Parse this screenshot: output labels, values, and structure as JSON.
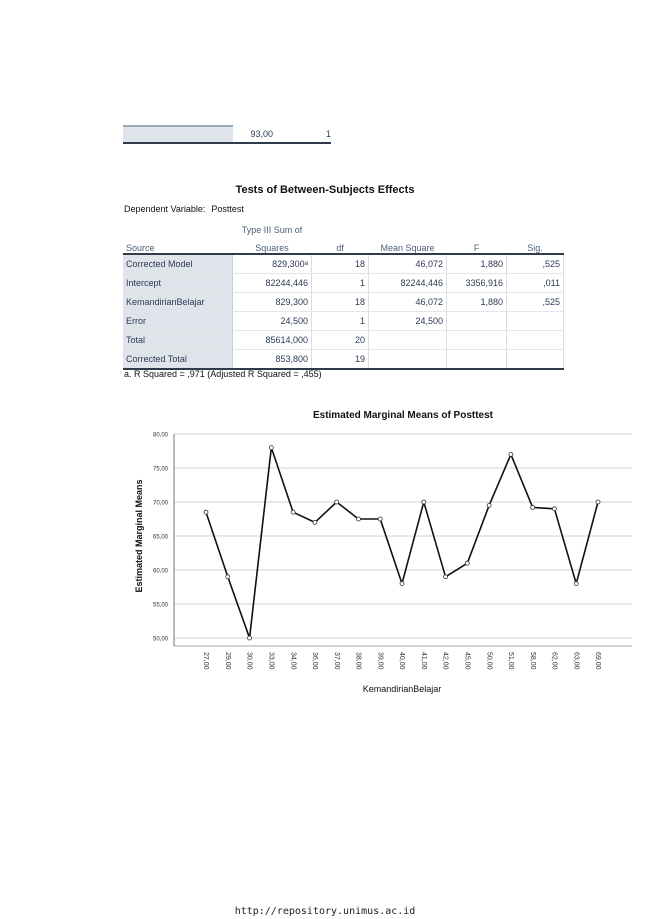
{
  "residual_table": {
    "value": "93,00",
    "count": "1"
  },
  "anova": {
    "title": "Tests of Between-Subjects Effects",
    "dep_var_label": "Dependent Variable:",
    "dep_var_value": "Posttest",
    "headers": {
      "source": "Source",
      "ss_top": "Type III Sum of",
      "ss_bottom": "Squares",
      "df": "df",
      "ms": "Mean Square",
      "f": "F",
      "sig": "Sig."
    },
    "rows": [
      {
        "source": "Corrected Model",
        "ss": "829,300ᵃ",
        "df": "18",
        "ms": "46,072",
        "f": "1,880",
        "sig": ",525"
      },
      {
        "source": "Intercept",
        "ss": "82244,446",
        "df": "1",
        "ms": "82244,446",
        "f": "3356,916",
        "sig": ",011"
      },
      {
        "source": "KemandirianBelajar",
        "ss": "829,300",
        "df": "18",
        "ms": "46,072",
        "f": "1,880",
        "sig": ",525"
      },
      {
        "source": "Error",
        "ss": "24,500",
        "df": "1",
        "ms": "24,500",
        "f": "",
        "sig": ""
      },
      {
        "source": "Total",
        "ss": "85614,000",
        "df": "20",
        "ms": "",
        "f": "",
        "sig": ""
      },
      {
        "source": "Corrected Total",
        "ss": "853,800",
        "df": "19",
        "ms": "",
        "f": "",
        "sig": ""
      }
    ],
    "footnote": "a. R Squared = ,971 (Adjusted R Squared = ,455)"
  },
  "chart_data": {
    "type": "line",
    "title": "Estimated Marginal Means of Posttest",
    "xlabel": "KemandirianBelajar",
    "ylabel": "Estimated Marginal Means",
    "categories": [
      "27,00",
      "29,00",
      "30,00",
      "33,00",
      "34,00",
      "36,00",
      "37,00",
      "38,00",
      "39,00",
      "40,00",
      "41,00",
      "42,00",
      "45,00",
      "50,00",
      "51,00",
      "58,00",
      "62,00",
      "63,00",
      "69,00"
    ],
    "values": [
      68.5,
      59,
      50,
      78,
      68.5,
      67,
      70,
      67.5,
      67.5,
      58,
      70,
      59,
      61,
      69.5,
      77,
      69.2,
      69,
      58,
      70
    ],
    "yticks": [
      "50,00",
      "55,00",
      "60,00",
      "65,00",
      "70,00",
      "75,00",
      "80,00"
    ],
    "ylim": [
      50,
      80
    ],
    "grid": true,
    "line_color": "#111111"
  },
  "footer": {
    "url": "http://repository.unimus.ac.id"
  }
}
